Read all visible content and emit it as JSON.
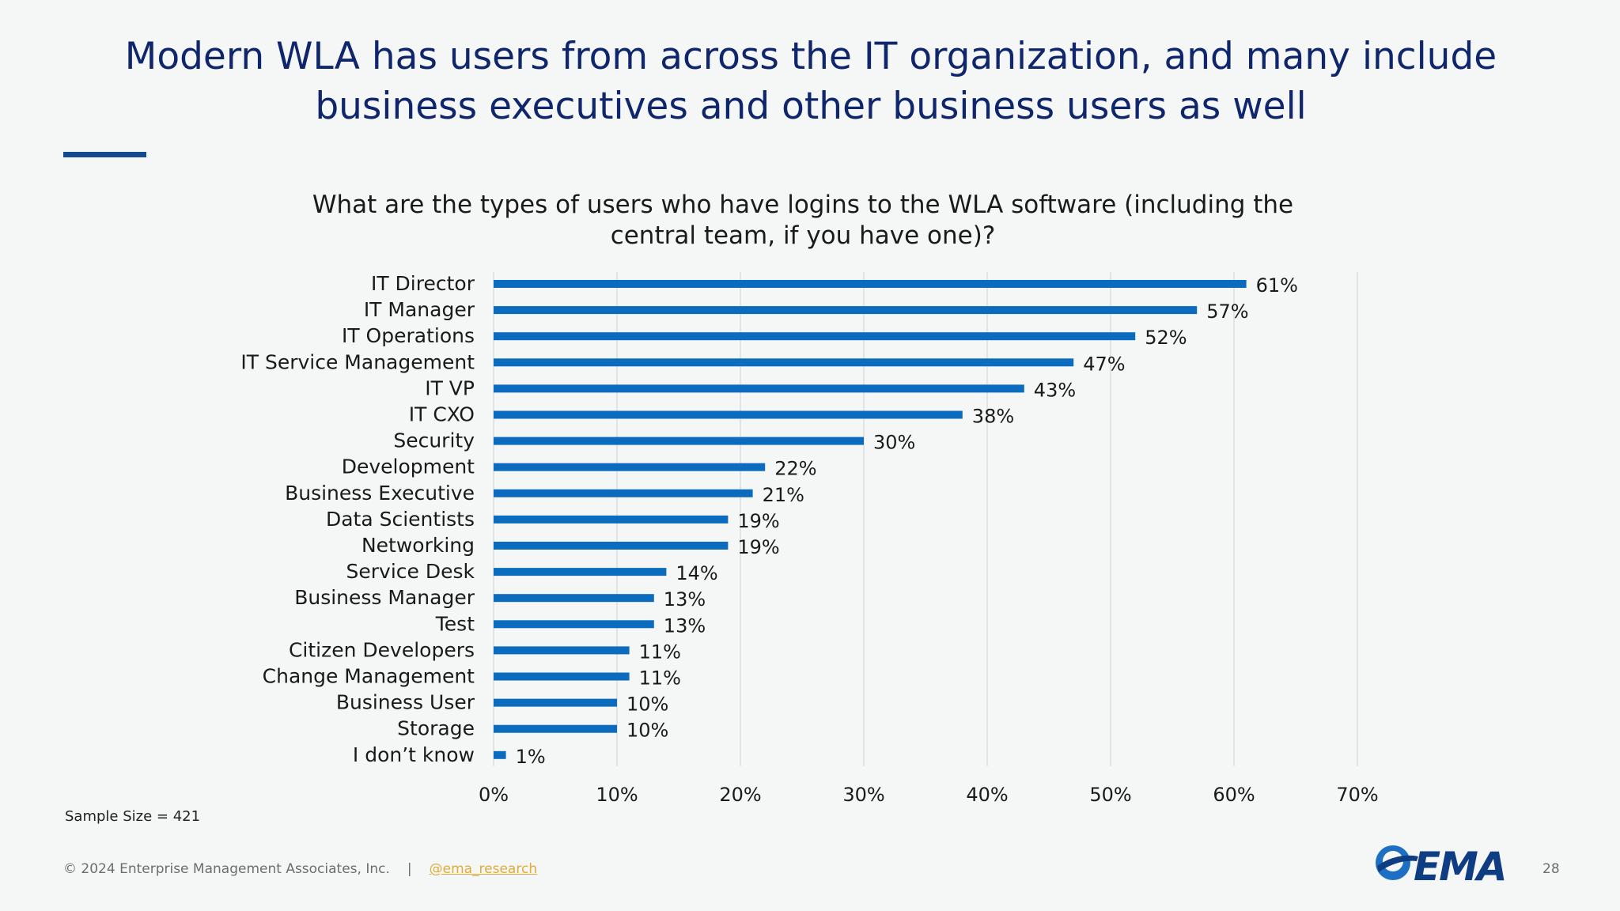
{
  "slide": {
    "title": "Modern WLA has users from across the IT organization, and many include business executives and other business users as well",
    "sample_size": "Sample Size = 421",
    "page_number": "28"
  },
  "footer": {
    "copyright": "© 2024 Enterprise Management Associates, Inc.",
    "separator": "|",
    "social_handle": "@ema_research"
  },
  "logo": {
    "text": "EMA",
    "icon": "ema-swoosh-icon"
  },
  "colors": {
    "bar": "#0b6bbf",
    "title": "#10266c",
    "accent": "#134a8e",
    "grid": "#d9dde0"
  },
  "chart_data": {
    "type": "bar",
    "orientation": "horizontal",
    "title": "What are the types of users who have logins to the WLA software (including the central team, if you have one)?",
    "categories": [
      "IT Director",
      "IT Manager",
      "IT Operations",
      "IT Service Management",
      "IT VP",
      "IT CXO",
      "Security",
      "Development",
      "Business Executive",
      "Data Scientists",
      "Networking",
      "Service Desk",
      "Business Manager",
      "Test",
      "Citizen Developers",
      "Change Management",
      "Business User",
      "Storage",
      "I don’t know"
    ],
    "values": [
      61,
      57,
      52,
      47,
      43,
      38,
      30,
      22,
      21,
      19,
      19,
      14,
      13,
      13,
      11,
      11,
      10,
      10,
      1
    ],
    "value_labels": [
      "61%",
      "57%",
      "52%",
      "47%",
      "43%",
      "38%",
      "30%",
      "22%",
      "21%",
      "19%",
      "19%",
      "14%",
      "13%",
      "13%",
      "11%",
      "11%",
      "10%",
      "10%",
      "1%"
    ],
    "xlim": [
      0,
      70
    ],
    "x_ticks": [
      "0%",
      "10%",
      "20%",
      "30%",
      "40%",
      "50%",
      "60%",
      "70%"
    ],
    "grid": "vertical",
    "legend": "none"
  }
}
